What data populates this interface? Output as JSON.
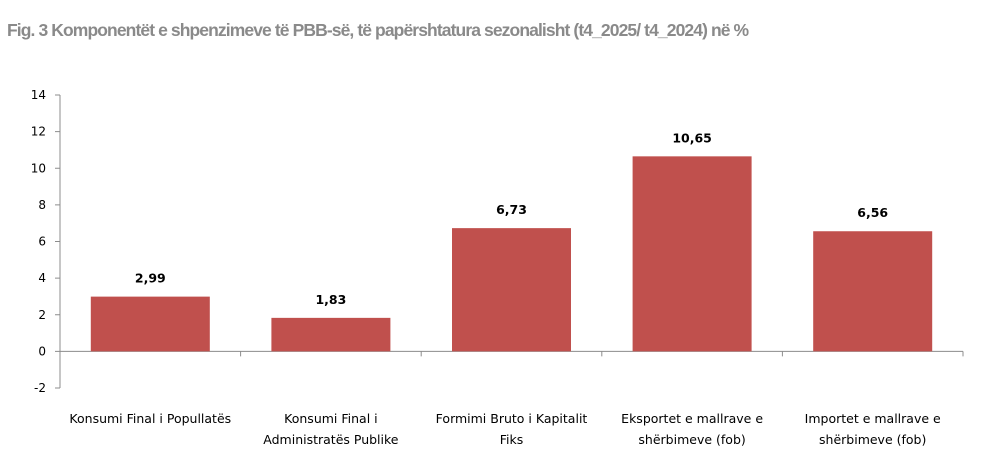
{
  "chart_data": {
    "type": "bar",
    "title": "Fig. 3 Komponentët  e shpenzimeve të PBB-së, të papërshtatura sezonalisht (t4_2025/ t4_2024) në %",
    "categories": [
      [
        "Konsumi Final i Popullatës"
      ],
      [
        "Konsumi Final i",
        "Administratës Publike"
      ],
      [
        "Formimi Bruto i Kapitalit",
        "Fiks"
      ],
      [
        "Eksportet e mallrave e",
        "shërbimeve (fob)"
      ],
      [
        "Importet e mallrave e",
        "shërbimeve (fob)"
      ]
    ],
    "values": [
      2.99,
      1.83,
      6.73,
      10.65,
      6.56
    ],
    "value_labels": [
      "2,99",
      "1,83",
      "6,73",
      "10,65",
      "6,56"
    ],
    "ylim": [
      -2,
      14
    ],
    "yticks": [
      -2,
      0,
      2,
      4,
      6,
      8,
      10,
      12,
      14
    ],
    "xlabel": "",
    "ylabel": "",
    "bar_color": "#c0504d",
    "grid": false,
    "legend": "none"
  }
}
